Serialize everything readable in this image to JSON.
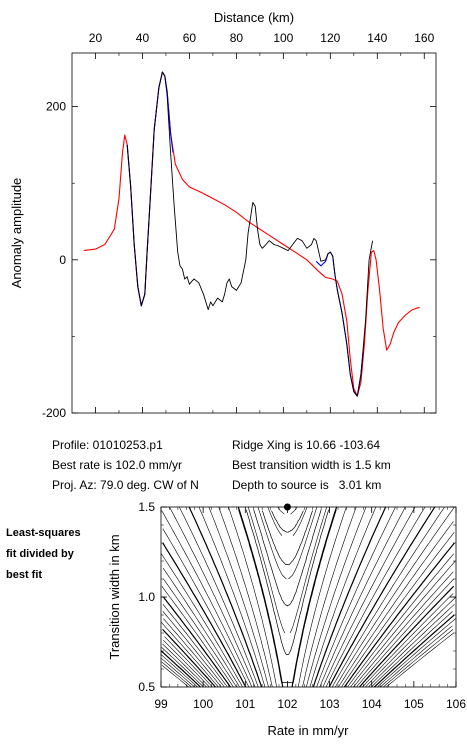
{
  "info": {
    "profile": "Profile: 01010253.p1",
    "best_rate": "Best rate is 102.0 mm/yr",
    "proj_az": "Proj. Az: 79.0 deg. CW of N",
    "ridge_xing": "Ridge Xing is 10.66 -103.64",
    "best_width": "Best transition width is 1.5 km",
    "depth": "Depth to source is   3.01 km"
  },
  "note": {
    "line1": "Least-squares",
    "line2": "fit divided by",
    "line3": "best fit"
  },
  "chart_data": [
    {
      "type": "line",
      "title": "",
      "xlabel": "Distance (km)",
      "ylabel": "Anomaly amplitude",
      "xlim": [
        10,
        165
      ],
      "ylim": [
        -200,
        270
      ],
      "x_ticks": [
        20,
        40,
        60,
        80,
        100,
        120,
        140,
        160
      ],
      "y_ticks": [
        -200,
        0,
        200
      ],
      "grid": false,
      "series": [
        {
          "color": "#ff0000",
          "x": [
            15,
            20,
            24,
            28,
            30,
            31.5,
            32.5,
            33.5,
            35,
            36.5,
            38,
            39.5,
            41,
            42,
            43.5,
            45,
            47,
            48.5,
            49.5,
            50.5,
            52,
            54,
            57,
            60,
            65,
            70,
            75,
            80,
            85,
            90,
            95,
            100,
            105,
            110,
            115,
            118,
            121,
            123,
            125,
            127,
            128.5,
            130,
            131.5,
            133,
            134.5,
            136,
            137.5,
            138.5,
            139.5,
            141,
            142.5,
            144,
            145.5,
            147,
            149,
            152,
            155,
            158
          ],
          "y": [
            12,
            14,
            20,
            40,
            80,
            140,
            163,
            150,
            95,
            20,
            -35,
            -60,
            -45,
            10,
            90,
            170,
            225,
            245,
            240,
            220,
            165,
            125,
            105,
            95,
            88,
            80,
            72,
            62,
            50,
            40,
            30,
            20,
            10,
            0,
            -15,
            -23,
            -25,
            -28,
            -45,
            -80,
            -130,
            -168,
            -178,
            -160,
            -110,
            -40,
            10,
            12,
            0,
            -40,
            -90,
            -118,
            -110,
            -95,
            -82,
            -72,
            -65,
            -62
          ]
        },
        {
          "color": "#0000ff",
          "x": [
            33.5,
            35,
            36.5,
            38,
            39.5,
            41,
            42,
            43.5,
            45,
            47,
            48.5,
            49.5,
            50.5,
            52,
            53
          ],
          "y": [
            150,
            95,
            20,
            -35,
            -60,
            -45,
            10,
            90,
            170,
            225,
            245,
            240,
            220,
            165,
            140
          ]
        },
        {
          "color": "#0000ff",
          "x": [
            114,
            116,
            118,
            119,
            120,
            121,
            122,
            123,
            125,
            127,
            128.5,
            130,
            131.5,
            133,
            134
          ],
          "y": [
            -2,
            -8,
            -2,
            8,
            10,
            5,
            -20,
            -40,
            -70,
            -110,
            -150,
            -172,
            -178,
            -150,
            -120
          ]
        },
        {
          "color": "#000000",
          "x": [
            33.5,
            35,
            36.5,
            38,
            39.5,
            41,
            42,
            43.5,
            45,
            47,
            48.5,
            49.5,
            50.5,
            52,
            53.5,
            55,
            56,
            57,
            58,
            59,
            60,
            61,
            62,
            64,
            66,
            68,
            69,
            70,
            72,
            74,
            75,
            76,
            77,
            78,
            80,
            82,
            84,
            85,
            86,
            87,
            88,
            89,
            90,
            91,
            92,
            94,
            96,
            98,
            100,
            102,
            104,
            106,
            108,
            110,
            112,
            113,
            114,
            116,
            118,
            119,
            120,
            121,
            122,
            123,
            125,
            127,
            128.5,
            130,
            131.5,
            133,
            135,
            136.5,
            138
          ],
          "y": [
            150,
            95,
            20,
            -35,
            -60,
            -45,
            10,
            90,
            170,
            225,
            245,
            240,
            215,
            140,
            70,
            10,
            -8,
            -12,
            -25,
            -22,
            -32,
            -28,
            -25,
            -30,
            -45,
            -65,
            -55,
            -60,
            -50,
            -55,
            -45,
            -30,
            -25,
            -35,
            -40,
            -30,
            0,
            35,
            55,
            75,
            70,
            40,
            20,
            15,
            18,
            25,
            20,
            18,
            15,
            12,
            20,
            28,
            25,
            15,
            20,
            28,
            25,
            -2,
            0,
            8,
            10,
            5,
            -20,
            -40,
            -70,
            -110,
            -150,
            -172,
            -178,
            -150,
            -80,
            0,
            25
          ]
        }
      ]
    },
    {
      "type": "contour",
      "title": "",
      "xlabel": "Rate in mm/yr",
      "ylabel": "Transition width in km",
      "xlim": [
        99,
        106
      ],
      "ylim": [
        0.5,
        1.5
      ],
      "x_ticks": [
        99,
        100,
        101,
        102,
        103,
        104,
        105,
        106
      ],
      "y_ticks": [
        0.5,
        1.0,
        1.5
      ],
      "grid": false,
      "best_fit_point": {
        "x": 102.0,
        "y": 1.5
      },
      "annotation": "Least-squares fit divided by best fit"
    }
  ]
}
